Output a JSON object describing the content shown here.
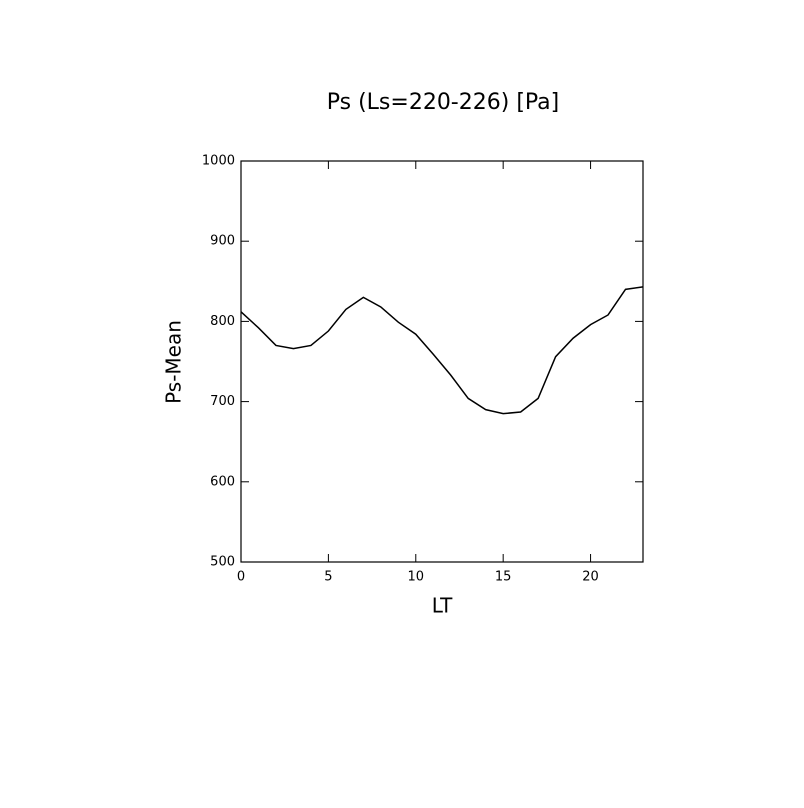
{
  "chart_data": {
    "type": "line",
    "title": "Ps (Ls=220-226) [Pa]",
    "x_label": "LT",
    "y_label": "Ps-Mean",
    "x": [
      0,
      1,
      2,
      3,
      4,
      5,
      6,
      7,
      8,
      9,
      10,
      11,
      12,
      13,
      14,
      15,
      16,
      17,
      18,
      19,
      20,
      21,
      22,
      23
    ],
    "series": [
      {
        "name": "Ps-Mean",
        "color": "#000000",
        "values": [
          812,
          792,
          770,
          766,
          770,
          788,
          815,
          830,
          818,
          799,
          784,
          759,
          733,
          704,
          690,
          685,
          687,
          704,
          756,
          779,
          796,
          808,
          840,
          843
        ]
      }
    ],
    "xlim": [
      0,
      23
    ],
    "xticks": [
      0,
      5,
      10,
      15,
      20
    ],
    "ylim": [
      500,
      1000
    ],
    "yticks": [
      500,
      600,
      700,
      800,
      900,
      1000
    ]
  }
}
